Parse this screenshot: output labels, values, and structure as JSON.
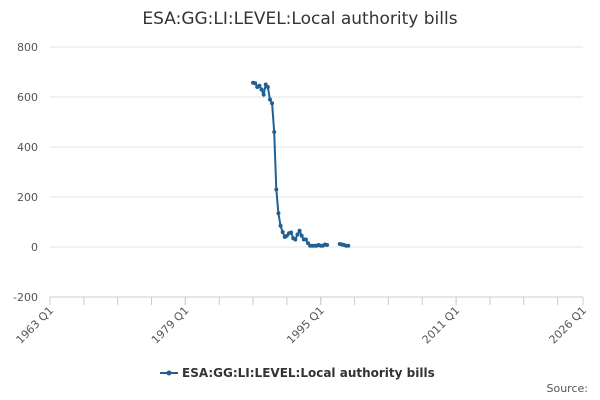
{
  "chart_data": {
    "type": "line",
    "title": "ESA:GG:LI:LEVEL:Local authority bills",
    "x": [
      "1987 Q1",
      "1987 Q2",
      "1987 Q3",
      "1987 Q4",
      "1988 Q1",
      "1988 Q2",
      "1988 Q3",
      "1988 Q4",
      "1989 Q1",
      "1989 Q2",
      "1989 Q3",
      "1989 Q4",
      "1990 Q1",
      "1990 Q2",
      "1990 Q3",
      "1990 Q4",
      "1991 Q1",
      "1991 Q2",
      "1991 Q3",
      "1991 Q4",
      "1992 Q1",
      "1992 Q2",
      "1992 Q3",
      "1992 Q4",
      "1993 Q1",
      "1993 Q2",
      "1993 Q3",
      "1993 Q4",
      "1994 Q1",
      "1994 Q2",
      "1994 Q3",
      "1994 Q4",
      "1995 Q1",
      "1995 Q2",
      "1995 Q3",
      "1995 Q4",
      "1996 Q1",
      "1996 Q2",
      "1996 Q3",
      "1996 Q4",
      "1997 Q1",
      "1997 Q2",
      "1997 Q3",
      "1997 Q4",
      "1998 Q1",
      "1998 Q2"
    ],
    "series": [
      {
        "name": "ESA:GG:LI:LEVEL:Local authority bills",
        "color": "#206095",
        "values": [
          657,
          655,
          640,
          645,
          630,
          610,
          650,
          640,
          590,
          575,
          460,
          230,
          135,
          85,
          60,
          40,
          45,
          55,
          58,
          35,
          30,
          50,
          65,
          45,
          30,
          30,
          15,
          5,
          5,
          5,
          5,
          8,
          5,
          5,
          10,
          8,
          null,
          null,
          null,
          null,
          null,
          12,
          10,
          8,
          5,
          5
        ]
      }
    ],
    "xlim": [
      "1963 Q1",
      "2026 Q1"
    ],
    "xticks": [
      "1963 Q1",
      "1979 Q1",
      "1995 Q1",
      "2011 Q1",
      "2026 Q1"
    ],
    "ylim": [
      -200,
      800
    ],
    "yticks": [
      -200,
      0,
      200,
      400,
      600,
      800
    ],
    "grid": true,
    "source": "Source:"
  }
}
